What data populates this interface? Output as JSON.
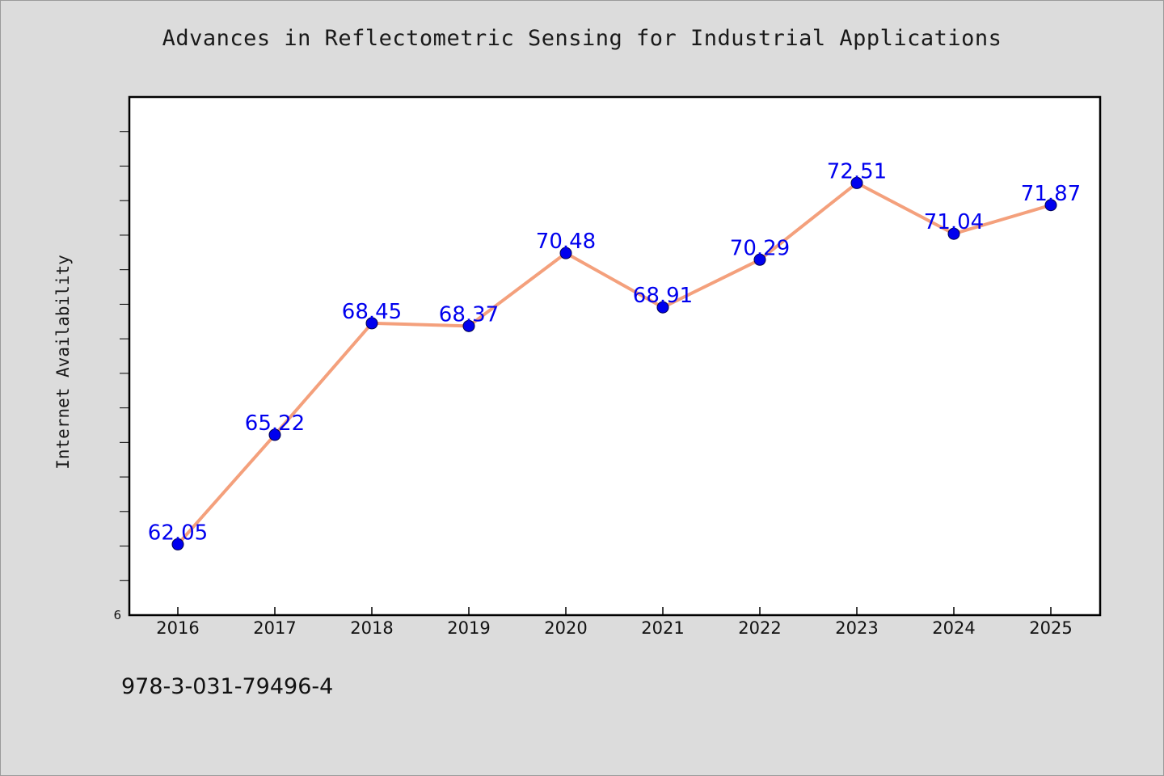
{
  "page": {
    "isbn": "978-3-031-79496-4"
  },
  "chart_data": {
    "type": "line",
    "title": "Advances in Reflectometric Sensing for Industrial Applications",
    "xlabel": "",
    "ylabel": "Internet Availability",
    "categories": [
      "2016",
      "2017",
      "2018",
      "2019",
      "2020",
      "2021",
      "2022",
      "2023",
      "2024",
      "2025"
    ],
    "series": [
      {
        "values": [
          62.05,
          65.22,
          68.45,
          68.37,
          70.48,
          68.91,
          70.29,
          72.51,
          71.04,
          71.87
        ],
        "labels": [
          "62.05",
          "65.22",
          "68.45",
          "68.37",
          "70.48",
          "68.91",
          "70.29",
          "72.51",
          "71.04",
          "71.87"
        ]
      }
    ],
    "ylim": [
      60,
      75
    ],
    "y_tick_labels": [
      "6"
    ],
    "y_minor_tick_step": 1,
    "grid": false,
    "legend": "none",
    "colors": {
      "line": "#f4a07c",
      "marker": "#0000ee",
      "label": "#0000ee",
      "background": "#dcdcdc",
      "plot_background": "#ffffff"
    }
  }
}
